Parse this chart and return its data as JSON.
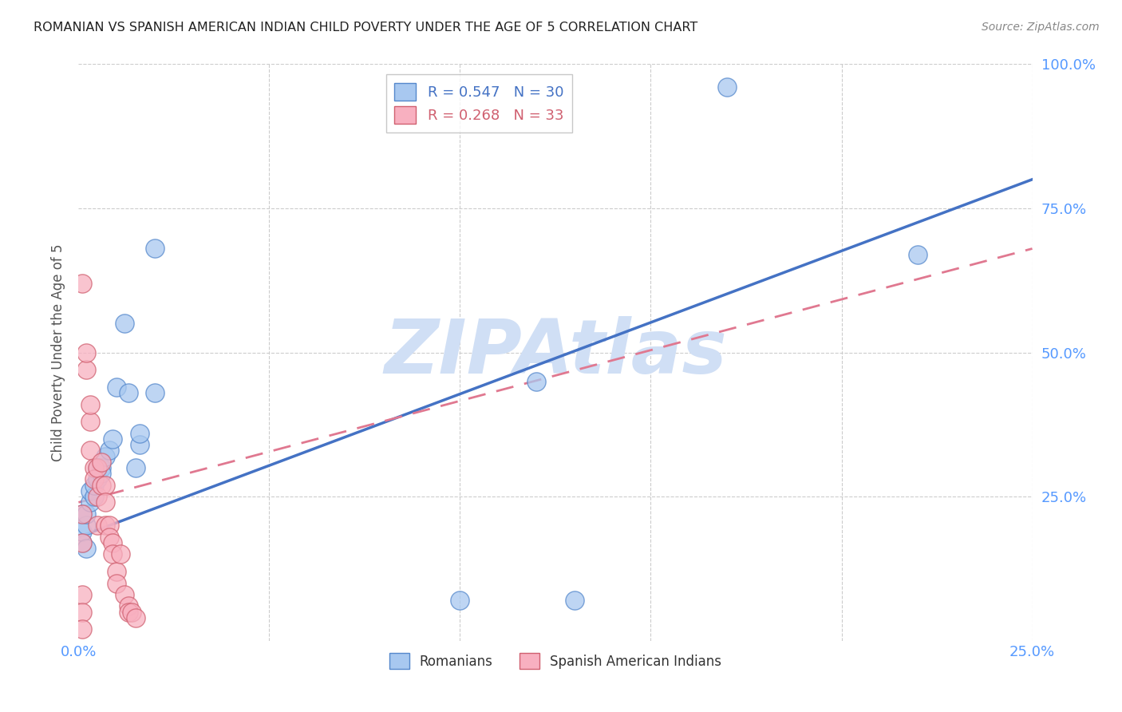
{
  "title": "ROMANIAN VS SPANISH AMERICAN INDIAN CHILD POVERTY UNDER THE AGE OF 5 CORRELATION CHART",
  "source": "Source: ZipAtlas.com",
  "ylabel": "Child Poverty Under the Age of 5",
  "romanian_R": 0.547,
  "romanian_N": 30,
  "spanish_R": 0.268,
  "spanish_N": 33,
  "color_romanian_fill": "#a8c8f0",
  "color_romanian_edge": "#5588cc",
  "color_spanish_fill": "#f8b0c0",
  "color_spanish_edge": "#d06070",
  "color_romanian_line": "#4472c4",
  "color_spanish_line": "#e07890",
  "watermark": "ZIPAtlas",
  "watermark_color": "#d0dff5",
  "background_color": "#ffffff",
  "grid_color": "#cccccc",
  "axis_label_color": "#5599ff",
  "title_color": "#222222",
  "source_color": "#888888",
  "romanians_x": [
    0.001,
    0.001,
    0.001,
    0.002,
    0.002,
    0.002,
    0.003,
    0.003,
    0.004,
    0.004,
    0.005,
    0.005,
    0.006,
    0.006,
    0.007,
    0.008,
    0.009,
    0.01,
    0.012,
    0.013,
    0.015,
    0.016,
    0.016,
    0.1,
    0.13,
    0.17,
    0.02,
    0.02,
    0.12,
    0.22
  ],
  "romanians_y": [
    0.17,
    0.19,
    0.22,
    0.16,
    0.2,
    0.22,
    0.24,
    0.26,
    0.25,
    0.27,
    0.28,
    0.3,
    0.3,
    0.29,
    0.32,
    0.33,
    0.35,
    0.44,
    0.55,
    0.43,
    0.3,
    0.34,
    0.36,
    0.07,
    0.07,
    0.96,
    0.43,
    0.68,
    0.45,
    0.67
  ],
  "spanish_x": [
    0.001,
    0.001,
    0.001,
    0.002,
    0.002,
    0.003,
    0.003,
    0.003,
    0.004,
    0.004,
    0.005,
    0.005,
    0.005,
    0.006,
    0.006,
    0.007,
    0.007,
    0.007,
    0.008,
    0.008,
    0.009,
    0.009,
    0.01,
    0.01,
    0.011,
    0.012,
    0.013,
    0.013,
    0.014,
    0.015,
    0.001,
    0.001,
    0.001
  ],
  "spanish_y": [
    0.62,
    0.22,
    0.17,
    0.47,
    0.5,
    0.38,
    0.33,
    0.41,
    0.3,
    0.28,
    0.3,
    0.25,
    0.2,
    0.31,
    0.27,
    0.27,
    0.24,
    0.2,
    0.2,
    0.18,
    0.17,
    0.15,
    0.12,
    0.1,
    0.15,
    0.08,
    0.06,
    0.05,
    0.05,
    0.04,
    0.08,
    0.05,
    0.02
  ],
  "xlim": [
    0,
    0.25
  ],
  "ylim": [
    0,
    1.0
  ],
  "x_ticks": [
    0.0,
    0.05,
    0.1,
    0.15,
    0.2,
    0.25
  ],
  "x_tick_labels": [
    "0.0%",
    "",
    "",
    "",
    "",
    "25.0%"
  ],
  "y_ticks_right": [
    0.25,
    0.5,
    0.75,
    1.0
  ],
  "y_tick_labels_right": [
    "25.0%",
    "50.0%",
    "75.0%",
    "100.0%"
  ],
  "rom_line_x0": 0.0,
  "rom_line_y0": 0.18,
  "rom_line_x1": 0.25,
  "rom_line_y1": 0.8,
  "spa_line_x0": 0.0,
  "spa_line_y0": 0.24,
  "spa_line_x1": 0.25,
  "spa_line_y1": 0.68
}
